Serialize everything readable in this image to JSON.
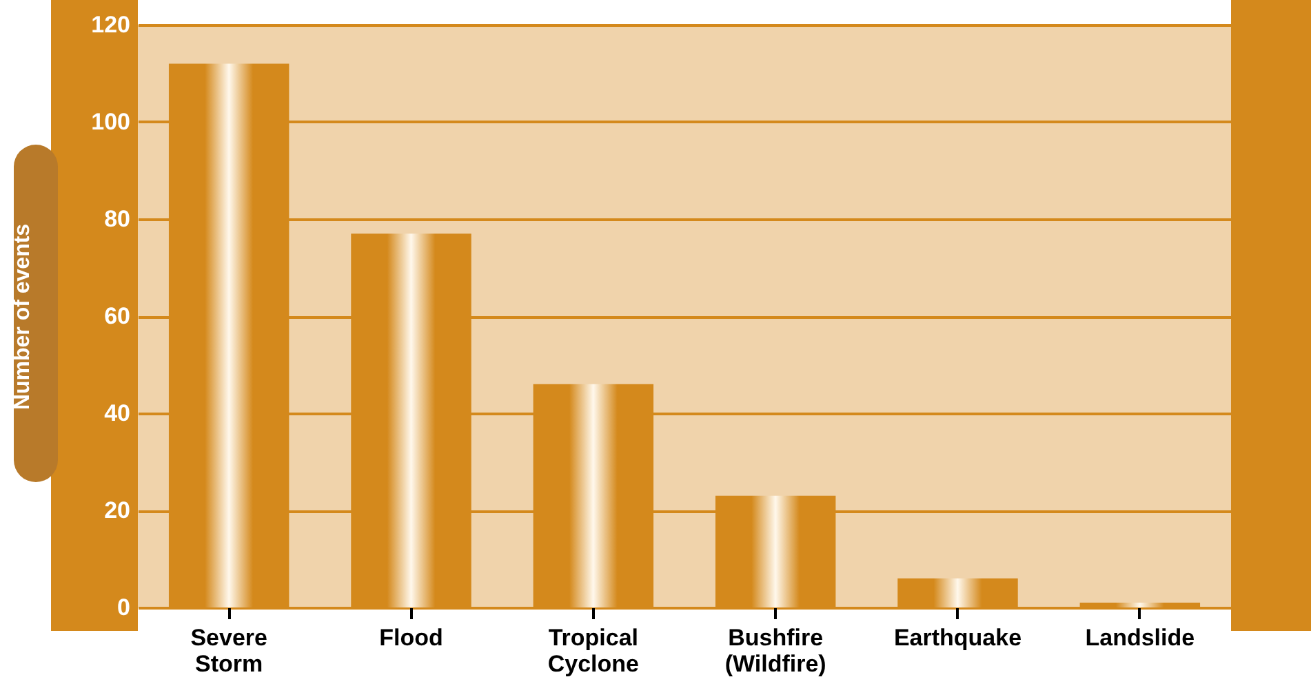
{
  "chart_data": {
    "type": "bar",
    "ylabel": "Number of events",
    "categories": [
      "Severe Storm",
      "Flood",
      "Tropical Cyclone",
      "Bushfire (Wildfire)",
      "Earthquake",
      "Landslide"
    ],
    "values": [
      112,
      77,
      46,
      23,
      6,
      1
    ],
    "color": "#d4891c",
    "ylim": [
      0,
      120
    ],
    "yticks": [
      0,
      20,
      40,
      60,
      80,
      100,
      120
    ],
    "grid": "y"
  }
}
